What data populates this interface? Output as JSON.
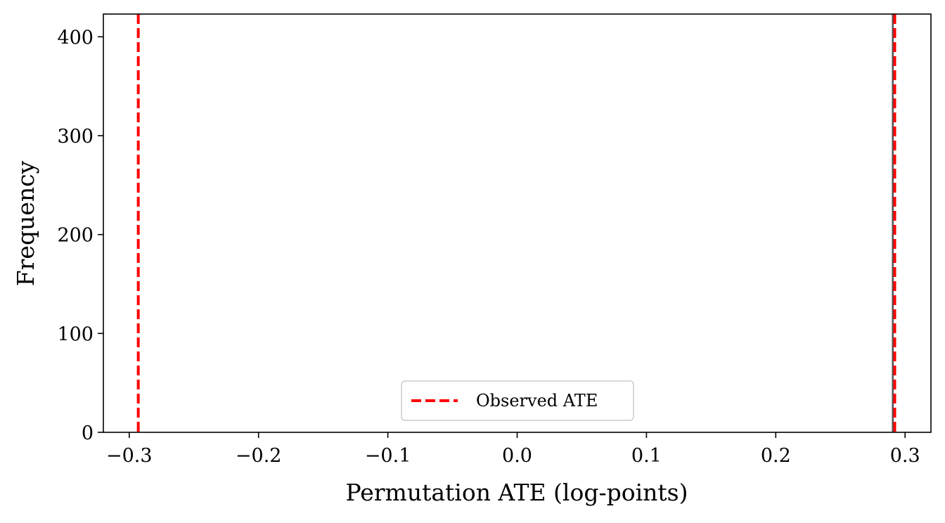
{
  "chart_data": {
    "type": "histogram",
    "title": "",
    "xlabel": "Permutation ATE (log-points)",
    "ylabel": "Frequency",
    "xlim": [
      -0.32,
      0.32
    ],
    "ylim": [
      0,
      423
    ],
    "x_ticks": [
      -0.3,
      -0.2,
      -0.1,
      0.0,
      0.1,
      0.2,
      0.3
    ],
    "x_tick_labels": [
      "−0.3",
      "−0.2",
      "−0.1",
      "0.0",
      "0.1",
      "0.2",
      "0.3"
    ],
    "y_ticks": [
      0,
      100,
      200,
      300,
      400
    ],
    "y_tick_labels": [
      "0",
      "100",
      "200",
      "300",
      "400"
    ],
    "histogram": {
      "bins": [
        {
          "x0": 0.2898,
          "x1": 0.2912,
          "count": 423
        }
      ],
      "color": "#555555"
    },
    "reference_lines": [
      {
        "x": -0.293,
        "style": "dashed",
        "color": "#ff0000"
      },
      {
        "x": 0.292,
        "style": "dashed",
        "color": "#ff0000"
      }
    ],
    "legend": {
      "location": "lower center",
      "entries": [
        {
          "label": "Observed ATE",
          "style": "dashed",
          "color": "#ff0000"
        }
      ]
    },
    "grid": false
  }
}
